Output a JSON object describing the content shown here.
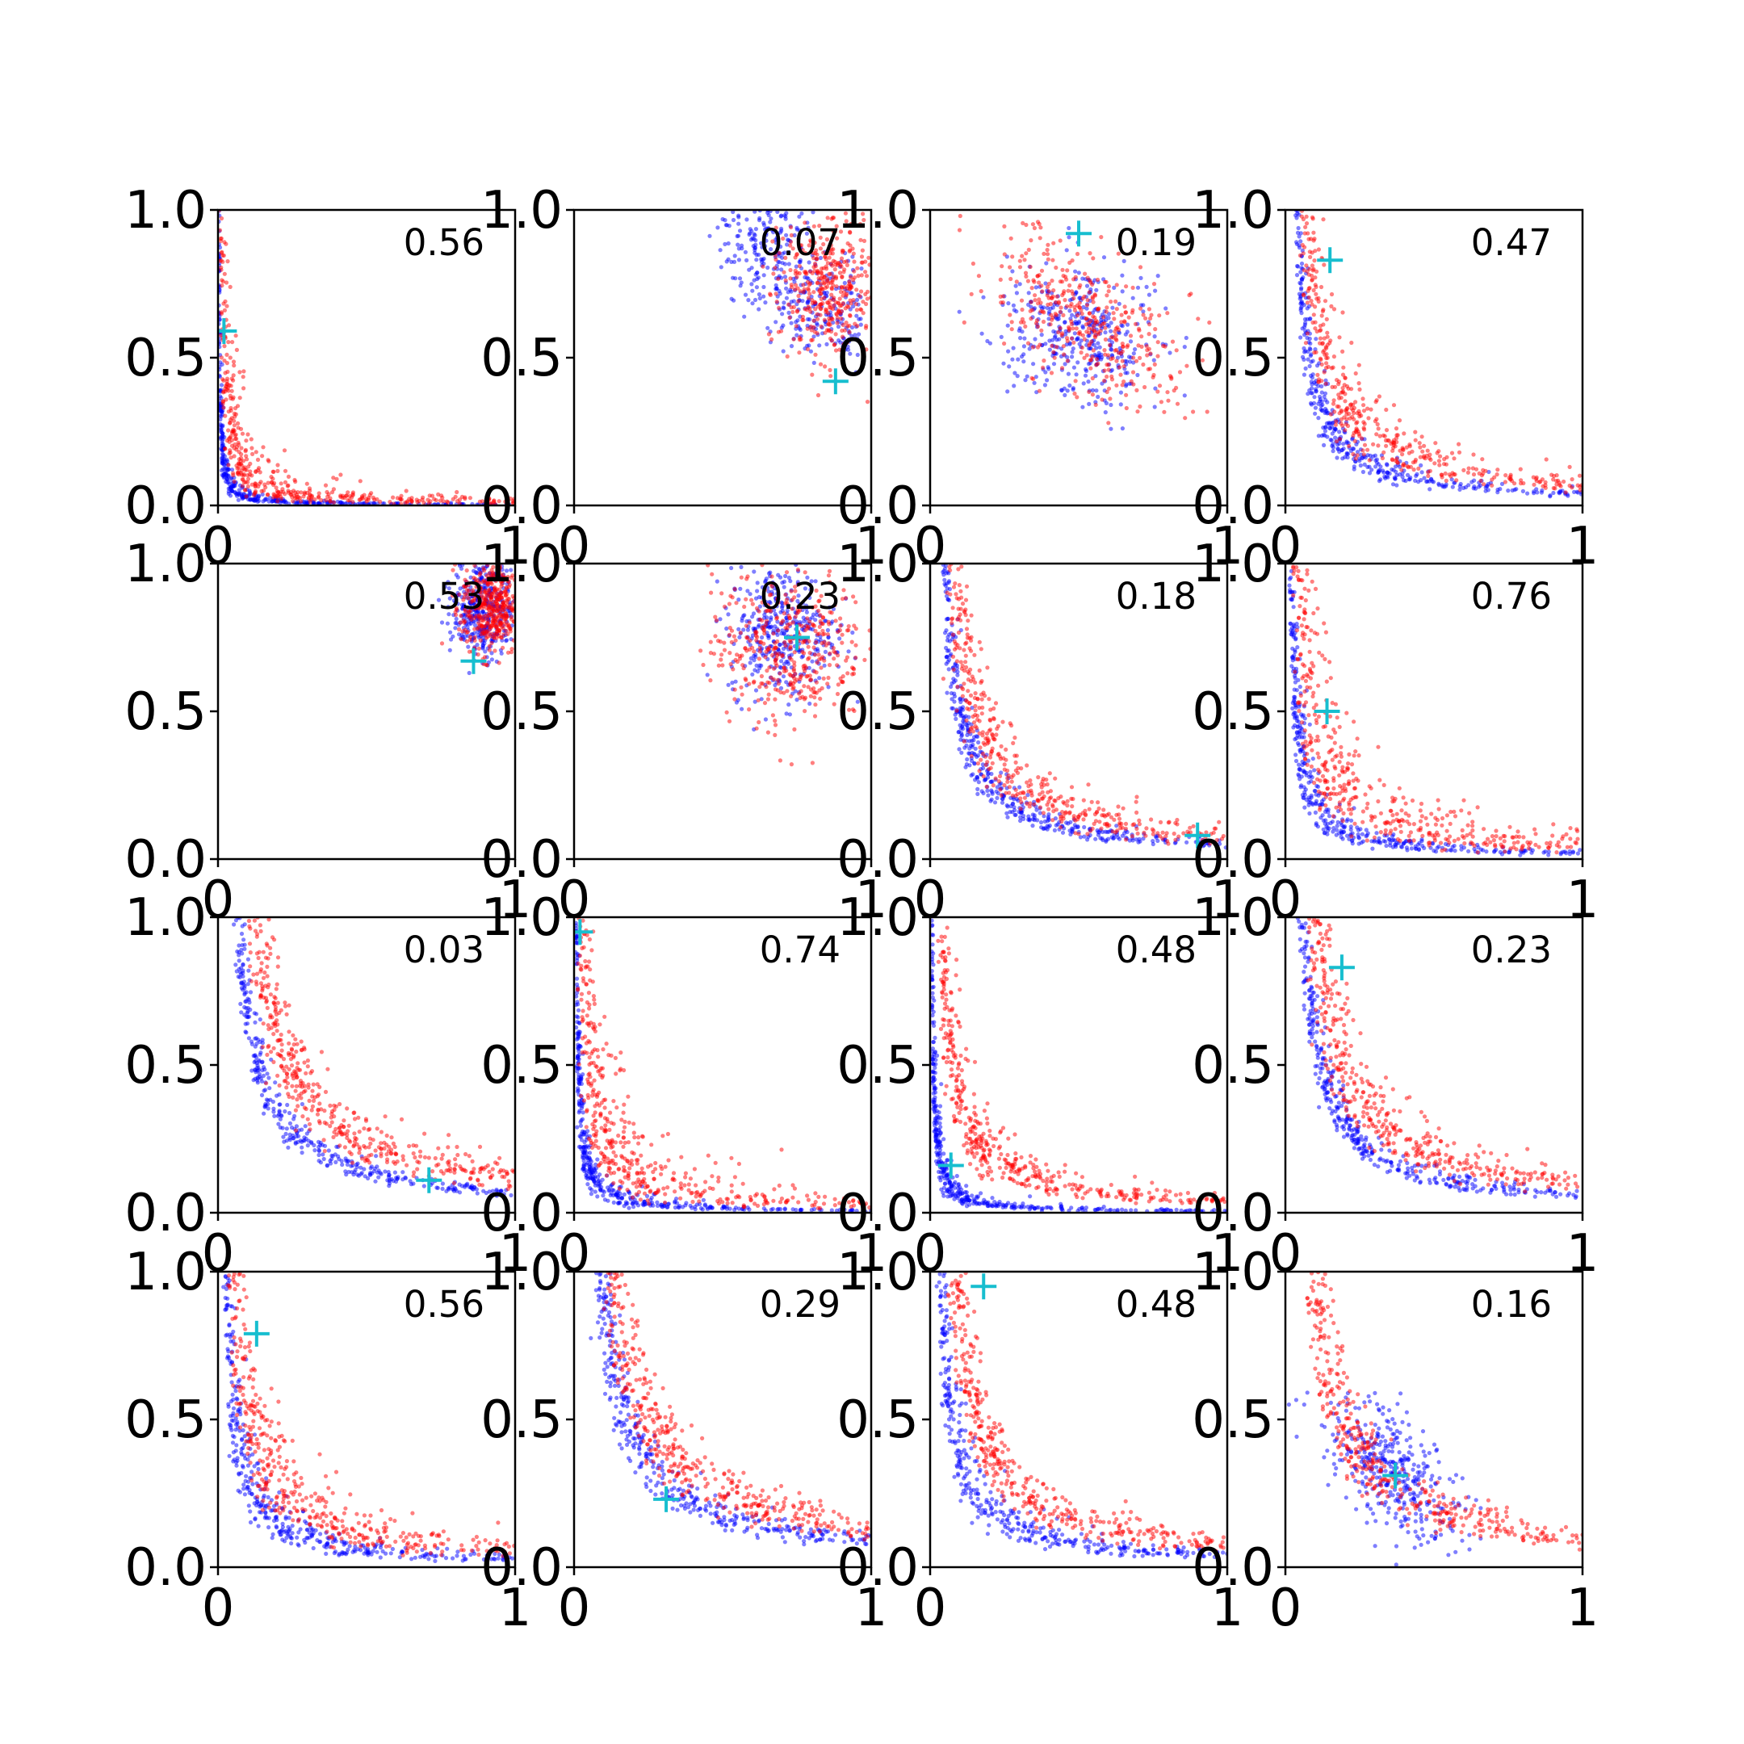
{
  "chart_data": {
    "type": "scatter",
    "title": "",
    "layout": {
      "rows": 4,
      "cols": 4
    },
    "xlim": [
      0,
      1
    ],
    "ylim": [
      0,
      1
    ],
    "x_ticks": [
      "0",
      "1"
    ],
    "y_ticks": [
      "0.0",
      "0.5",
      "1.0"
    ],
    "grid": false,
    "legend": "none",
    "colors": {
      "set_a": "#0000ff",
      "set_b": "#ff0000",
      "marker": "#17becf"
    },
    "panels": [
      {
        "value_label": "0.56",
        "marker": [
          0.02,
          0.59
        ],
        "set_a": {
          "shape": "hyperbola",
          "c": 0.003,
          "spread": 0.6,
          "n": 380
        },
        "set_b": {
          "shape": "hyperbola",
          "c": 0.012,
          "spread": 1.0,
          "n": 420
        }
      },
      {
        "value_label": "0.07",
        "marker": [
          0.88,
          0.42
        ],
        "set_a": {
          "shape": "arc",
          "x0": 1.0,
          "y0": 1.0,
          "r": 0.38,
          "a0": 180,
          "a1": 265,
          "w": 0.08,
          "n": 380
        },
        "set_b": {
          "shape": "blob",
          "cx": 0.85,
          "cy": 0.75,
          "sx": 0.08,
          "sy": 0.12,
          "rot": 0,
          "n": 380
        }
      },
      {
        "value_label": "0.19",
        "marker": [
          0.5,
          0.92
        ],
        "set_a": {
          "shape": "blob",
          "cx": 0.5,
          "cy": 0.57,
          "sx": 0.13,
          "sy": 0.11,
          "rot": -30,
          "n": 380
        },
        "set_b": {
          "shape": "blob",
          "cx": 0.53,
          "cy": 0.62,
          "sx": 0.2,
          "sy": 0.1,
          "rot": -40,
          "n": 400
        }
      },
      {
        "value_label": "0.47",
        "marker": [
          0.15,
          0.83
        ],
        "set_a": {
          "shape": "hyperbola",
          "c": 0.04,
          "spread": 0.35,
          "n": 380
        },
        "set_b": {
          "shape": "hyperbola",
          "c": 0.07,
          "spread": 0.45,
          "n": 400
        }
      },
      {
        "value_label": "0.53",
        "marker": [
          0.86,
          0.67
        ],
        "set_a": {
          "shape": "blob",
          "cx": 0.89,
          "cy": 0.86,
          "sx": 0.05,
          "sy": 0.09,
          "rot": 0,
          "n": 380
        },
        "set_b": {
          "shape": "blob",
          "cx": 0.92,
          "cy": 0.85,
          "sx": 0.05,
          "sy": 0.08,
          "rot": 0,
          "n": 400
        }
      },
      {
        "value_label": "0.23",
        "marker": [
          0.75,
          0.75
        ],
        "set_a": {
          "shape": "blob",
          "cx": 0.7,
          "cy": 0.77,
          "sx": 0.09,
          "sy": 0.11,
          "rot": 0,
          "n": 380
        },
        "set_b": {
          "shape": "blob",
          "cx": 0.72,
          "cy": 0.72,
          "sx": 0.13,
          "sy": 0.13,
          "rot": 0,
          "n": 400
        }
      },
      {
        "value_label": "0.18",
        "marker": [
          0.9,
          0.08
        ],
        "set_a": {
          "shape": "hyperbola",
          "c": 0.05,
          "spread": 0.3,
          "n": 400
        },
        "set_b": {
          "shape": "hyperbola",
          "c": 0.08,
          "spread": 0.45,
          "n": 400
        }
      },
      {
        "value_label": "0.76",
        "marker": [
          0.14,
          0.5
        ],
        "set_a": {
          "shape": "hyperbola",
          "c": 0.02,
          "spread": 0.5,
          "n": 380
        },
        "set_b": {
          "shape": "hyperbola",
          "c": 0.05,
          "spread": 0.8,
          "n": 420
        }
      },
      {
        "value_label": "0.03",
        "marker": [
          0.71,
          0.11
        ],
        "set_a": {
          "shape": "hyperbola",
          "c": 0.07,
          "spread": 0.25,
          "n": 360
        },
        "set_b": {
          "shape": "hyperbola",
          "c": 0.12,
          "spread": 0.35,
          "n": 420
        }
      },
      {
        "value_label": "0.74",
        "marker": [
          0.02,
          0.95
        ],
        "set_a": {
          "shape": "hyperbola",
          "c": 0.008,
          "spread": 0.6,
          "n": 400
        },
        "set_b": {
          "shape": "hyperbola",
          "c": 0.03,
          "spread": 0.9,
          "n": 420
        }
      },
      {
        "value_label": "0.48",
        "marker": [
          0.07,
          0.16
        ],
        "set_a": {
          "shape": "hyperbola",
          "c": 0.006,
          "spread": 0.6,
          "n": 400
        },
        "set_b": {
          "shape": "hyperbola",
          "c": 0.04,
          "spread": 0.5,
          "n": 420
        }
      },
      {
        "value_label": "0.23",
        "marker": [
          0.19,
          0.83
        ],
        "set_a": {
          "shape": "hyperbola",
          "c": 0.06,
          "spread": 0.3,
          "n": 380
        },
        "set_b": {
          "shape": "hyperbola",
          "c": 0.1,
          "spread": 0.4,
          "n": 400
        }
      },
      {
        "value_label": "0.56",
        "marker": [
          0.13,
          0.79
        ],
        "set_a": {
          "shape": "hyperbola",
          "c": 0.03,
          "spread": 0.5,
          "n": 380
        },
        "set_b": {
          "shape": "hyperbola",
          "c": 0.06,
          "spread": 0.6,
          "n": 400
        }
      },
      {
        "value_label": "0.29",
        "marker": [
          0.31,
          0.23
        ],
        "set_a": {
          "shape": "hyperbola",
          "c": 0.09,
          "spread": 0.3,
          "n": 380
        },
        "set_b": {
          "shape": "hyperbola",
          "c": 0.13,
          "spread": 0.35,
          "n": 400
        }
      },
      {
        "value_label": "0.48",
        "marker": [
          0.18,
          0.95
        ],
        "set_a": {
          "shape": "hyperbola",
          "c": 0.04,
          "spread": 0.45,
          "n": 380
        },
        "set_b": {
          "shape": "hyperbola",
          "c": 0.08,
          "spread": 0.4,
          "n": 400
        }
      },
      {
        "value_label": "0.16",
        "marker": [
          0.37,
          0.31
        ],
        "set_a": {
          "shape": "blob",
          "cx": 0.36,
          "cy": 0.32,
          "sx": 0.08,
          "sy": 0.14,
          "rot": 40,
          "n": 380
        },
        "set_b": {
          "shape": "hyperbola",
          "c": 0.1,
          "spread": 0.4,
          "n": 400
        }
      }
    ]
  }
}
